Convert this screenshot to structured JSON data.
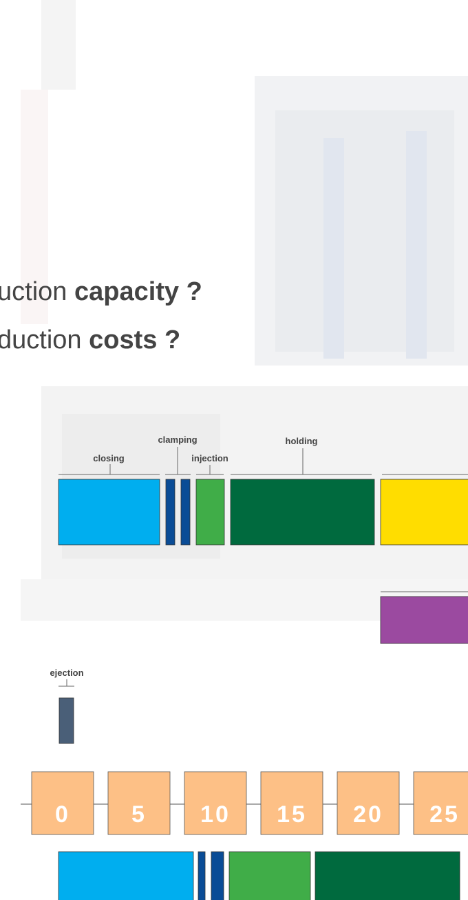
{
  "headline": {
    "line1": {
      "start": "uction",
      "bold": "capacity",
      "end": "?"
    },
    "line2": {
      "start": "duction",
      "bold": "costs",
      "end": "?"
    }
  },
  "phases": {
    "closing": "closing",
    "clamping": "clamping",
    "injection": "injection",
    "holding": "holding",
    "ejection": "ejection"
  },
  "timeline": {
    "labels": [
      0,
      5,
      10,
      15,
      20,
      25
    ]
  }
}
